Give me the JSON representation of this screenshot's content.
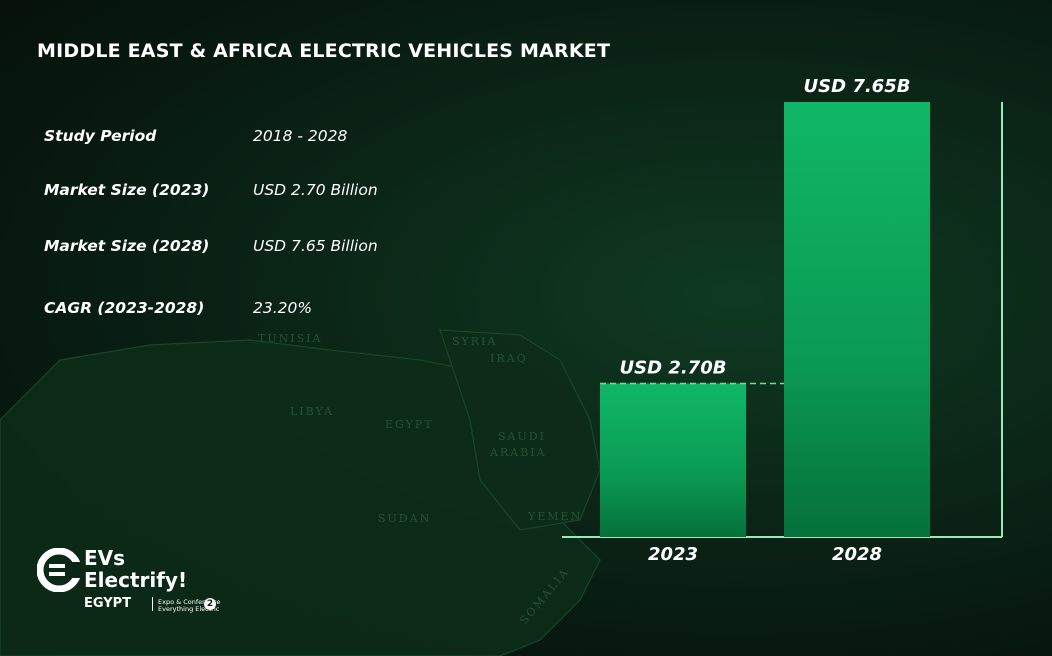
{
  "title": "MIDDLE EAST & AFRICA ELECTRIC VEHICLES MARKET",
  "stats": [
    {
      "label": "Study Period",
      "value": "2018 - 2028"
    },
    {
      "label": "Market Size (2023)",
      "value": "USD 2.70 Billion"
    },
    {
      "label": "Market Size (2028)",
      "value": "USD 7.65 Billion"
    },
    {
      "label": "CAGR (2023-2028)",
      "value": "23.20%"
    }
  ],
  "map_labels": [
    "TUNISIA",
    "SYRIA",
    "IRAQ",
    "EGYPT",
    "SAUDI",
    "ARABIA",
    "SUDAN",
    "YEMEN",
    "SOMALIA",
    "LIBYA"
  ],
  "chart_data": {
    "type": "bar",
    "title": "",
    "categories": [
      "2023",
      "2028"
    ],
    "values": [
      2.7,
      7.65
    ],
    "data_labels": [
      "USD 2.70B",
      "USD 7.65B"
    ],
    "units": "USD Billion",
    "xlabel": "",
    "ylabel": "",
    "ylim": [
      0,
      7.65
    ],
    "grid": false,
    "bar_color": "#0fae62"
  },
  "logo": {
    "line1": "EVs",
    "line2": "Electrify!",
    "line3": "EGYPT",
    "sub1": "Expo & Conference",
    "sub2": "Everything Electric",
    "badge": "2"
  }
}
